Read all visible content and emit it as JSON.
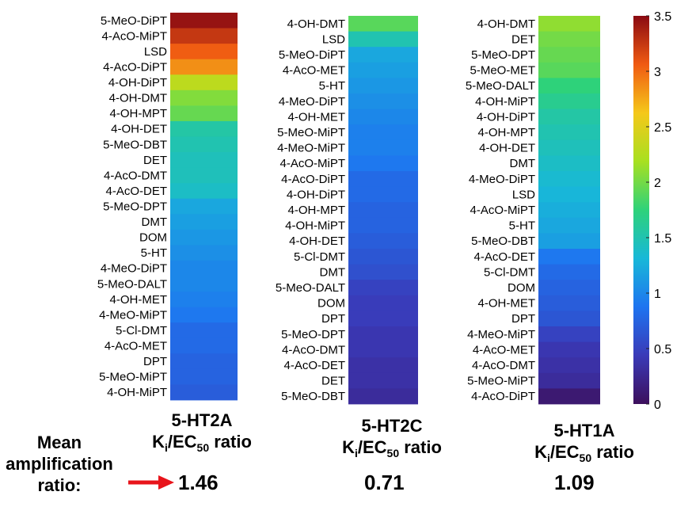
{
  "chart_data": [
    {
      "type": "heatmap",
      "receptor": "5-HT2A",
      "title_main": "5-HT2A",
      "subtitle_pre": "K",
      "subtitle_sub1": "i",
      "subtitle_mid": "/EC",
      "subtitle_sub2": "50",
      "subtitle_post": " ratio",
      "mean": "1.46",
      "categories": [
        "5-MeO-DiPT",
        "4-AcO-MiPT",
        "LSD",
        "4-AcO-DiPT",
        "4-OH-DiPT",
        "4-OH-DMT",
        "4-OH-MPT",
        "4-OH-DET",
        "5-MeO-DBT",
        "DET",
        "4-AcO-DMT",
        "4-AcO-DET",
        "5-MeO-DPT",
        "DMT",
        "DOM",
        "5-HT",
        "4-MeO-DiPT",
        "5-MeO-DALT",
        "4-OH-MET",
        "4-MeO-MiPT",
        "5-Cl-DMT",
        "4-AcO-MET",
        "DPT",
        "5-MeO-MiPT",
        "4-OH-MiPT"
      ],
      "values": [
        3.45,
        3.25,
        3.05,
        2.85,
        2.3,
        2.05,
        1.95,
        1.55,
        1.5,
        1.45,
        1.45,
        1.4,
        1.2,
        1.15,
        1.1,
        1.05,
        1.0,
        1.0,
        0.95,
        0.9,
        0.8,
        0.8,
        0.75,
        0.75,
        0.7
      ]
    },
    {
      "type": "heatmap",
      "receptor": "5-HT2C",
      "title_main": "5-HT2C",
      "subtitle_pre": "K",
      "subtitle_sub1": "i",
      "subtitle_mid": "/EC",
      "subtitle_sub2": "50",
      "subtitle_post": " ratio",
      "mean": "0.71",
      "categories": [
        "4-OH-DMT",
        "LSD",
        "5-MeO-DiPT",
        "4-AcO-MET",
        "5-HT",
        "4-MeO-DiPT",
        "4-OH-MET",
        "5-MeO-MiPT",
        "4-MeO-MiPT",
        "4-AcO-MiPT",
        "4-AcO-DiPT",
        "4-OH-DiPT",
        "4-OH-MPT",
        "4-OH-MiPT",
        "4-OH-DET",
        "5-Cl-DMT",
        "DMT",
        "5-MeO-DALT",
        "DOM",
        "DPT",
        "5-MeO-DPT",
        "4-AcO-DMT",
        "4-AcO-DET",
        "DET",
        "5-MeO-DBT"
      ],
      "values": [
        1.9,
        1.5,
        1.2,
        1.15,
        1.1,
        1.05,
        1.0,
        0.95,
        0.95,
        0.9,
        0.8,
        0.8,
        0.75,
        0.75,
        0.7,
        0.65,
        0.6,
        0.5,
        0.45,
        0.45,
        0.4,
        0.4,
        0.35,
        0.35,
        0.3
      ]
    },
    {
      "type": "heatmap",
      "receptor": "5-HT1A",
      "title_main": "5-HT1A",
      "subtitle_pre": "K",
      "subtitle_sub1": "i",
      "subtitle_mid": "/EC",
      "subtitle_sub2": "50",
      "subtitle_post": " ratio",
      "mean": "1.09",
      "categories": [
        "4-OH-DMT",
        "DET",
        "5-MeO-DPT",
        "5-MeO-MET",
        "5-MeO-DALT",
        "4-OH-MiPT",
        "4-OH-DiPT",
        "4-OH-MPT",
        "4-OH-DET",
        "DMT",
        "4-MeO-DiPT",
        "LSD",
        "4-AcO-MiPT",
        "5-HT",
        "5-MeO-DBT",
        "4-AcO-DET",
        "5-Cl-DMT",
        "DOM",
        "4-OH-MET",
        "DPT",
        "4-MeO-MiPT",
        "4-AcO-MET",
        "4-AcO-DMT",
        "5-MeO-MiPT",
        "4-AcO-DiPT"
      ],
      "values": [
        2.1,
        2.0,
        1.95,
        1.9,
        1.75,
        1.65,
        1.55,
        1.5,
        1.45,
        1.4,
        1.35,
        1.3,
        1.25,
        1.2,
        1.15,
        0.9,
        0.8,
        0.75,
        0.7,
        0.65,
        0.5,
        0.4,
        0.35,
        0.3,
        0.1
      ]
    }
  ],
  "colorbar": {
    "min": 0,
    "max": 3.5,
    "ticks": [
      "0",
      "0.5",
      "1",
      "1.5",
      "2",
      "2.5",
      "3",
      "3.5"
    ],
    "colormap": "parula-like"
  },
  "mean_label_lines": [
    "Mean",
    "amplification",
    "ratio:"
  ],
  "arrow_color": "#e8141b"
}
